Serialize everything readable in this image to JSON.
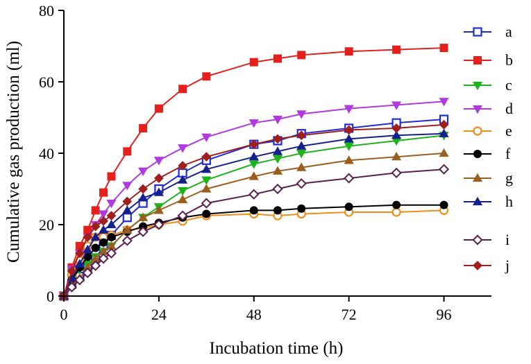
{
  "chart_data": {
    "type": "line",
    "title": "",
    "xlabel": "Incubation time (h)",
    "ylabel": "Cumulative gas production (ml)",
    "xlim": [
      0,
      108
    ],
    "ylim": [
      0,
      80
    ],
    "xticks": [
      0,
      24,
      48,
      72,
      96
    ],
    "yticks": [
      0,
      20,
      40,
      60,
      80
    ],
    "x": [
      0,
      2,
      4,
      6,
      8,
      10,
      12,
      16,
      20,
      24,
      30,
      36,
      48,
      54,
      60,
      72,
      84,
      96
    ],
    "legend_position": "right",
    "series": [
      {
        "name": "a",
        "color": "#1f2bd6",
        "marker": "square-open",
        "values": [
          0,
          3.5,
          5.5,
          8,
          10.5,
          14,
          17,
          22,
          26,
          30,
          34.5,
          38,
          42.5,
          43.5,
          45.5,
          47,
          48.5,
          49.5
        ]
      },
      {
        "name": "b",
        "color": "#e3201b",
        "marker": "square-filled",
        "values": [
          0,
          8,
          14,
          18.5,
          24,
          29,
          33.5,
          40.5,
          47,
          52.5,
          58,
          61.5,
          65.5,
          66.5,
          67.5,
          68.5,
          69,
          69.5
        ]
      },
      {
        "name": "c",
        "color": "#1db31d",
        "marker": "triangle-down",
        "values": [
          0,
          4.5,
          7.5,
          9,
          11,
          12.5,
          14,
          18.5,
          22,
          25,
          29.5,
          32.5,
          37,
          38.5,
          40,
          42,
          43.5,
          45
        ]
      },
      {
        "name": "d",
        "color": "#b03ae0",
        "marker": "triangle-down",
        "values": [
          0,
          7.5,
          12,
          16.5,
          20,
          23,
          26,
          31,
          35,
          38,
          41.5,
          44.5,
          48.5,
          49.5,
          51,
          52.5,
          53.5,
          54.5
        ]
      },
      {
        "name": "e",
        "color": "#f28c1a",
        "marker": "circle-open",
        "values": [
          0,
          6,
          10,
          14,
          16.5,
          16.5,
          17,
          18.5,
          19,
          20,
          21,
          22.5,
          23,
          22.5,
          23,
          23.5,
          23.5,
          24
        ]
      },
      {
        "name": "f",
        "color": "#000000",
        "marker": "circle-filled",
        "values": [
          0,
          4.5,
          8,
          11,
          13.5,
          15,
          16.5,
          18,
          19.5,
          20.5,
          22,
          23,
          24,
          24,
          24.5,
          25,
          25.5,
          25.5
        ]
      },
      {
        "name": "g",
        "color": "#9c5e1e",
        "marker": "triangle-up",
        "values": [
          0,
          3,
          5,
          8,
          10.5,
          12.5,
          14,
          18.5,
          22,
          24,
          27,
          30,
          33.5,
          35,
          36,
          38,
          39,
          40
        ]
      },
      {
        "name": "h",
        "color": "#16208c",
        "marker": "triangle-up",
        "values": [
          0,
          5,
          9,
          13,
          16.5,
          18.5,
          20,
          24,
          27.5,
          29,
          32.5,
          35.5,
          39,
          40.5,
          42,
          44,
          45,
          45.5
        ]
      },
      {
        "name": "i",
        "color": "#5a1e4f",
        "marker": "diamond-open",
        "values": [
          0,
          2.5,
          4.5,
          6.5,
          8.5,
          10.5,
          12,
          15.5,
          18,
          20,
          22.5,
          26,
          28.5,
          30,
          31.5,
          33,
          34.5,
          35.5
        ]
      },
      {
        "name": "j",
        "color": "#a01e1e",
        "marker": "diamond-filled",
        "values": [
          0,
          7,
          12,
          16.5,
          19.5,
          21,
          22.5,
          26.5,
          30,
          33,
          36.5,
          39,
          42.5,
          44,
          45,
          46.5,
          47,
          48
        ]
      }
    ]
  }
}
